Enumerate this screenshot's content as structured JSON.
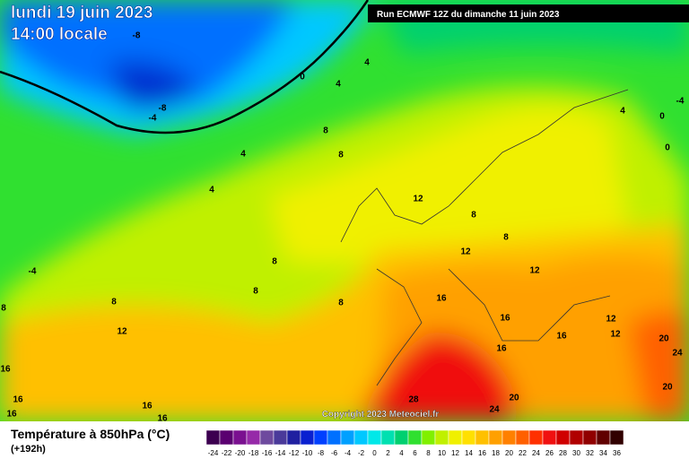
{
  "header": {
    "date": "lundi 19 juin 2023",
    "time": "14:00 locale",
    "run": "Run ECMWF 12Z du dimanche 11 juin 2023"
  },
  "copyright": "Copyright 2023 Meteociel.fr",
  "legend": {
    "title": "Température à 850hPa (°C)",
    "lead": "(+192h)",
    "values": [
      -24,
      -22,
      -20,
      -18,
      -16,
      -14,
      -12,
      -10,
      -8,
      -6,
      -4,
      -2,
      0,
      2,
      4,
      6,
      8,
      10,
      12,
      14,
      16,
      18,
      20,
      22,
      24,
      26,
      28,
      30,
      32,
      34,
      36
    ],
    "colors": [
      "#3c0050",
      "#5a0070",
      "#7a1090",
      "#962aa8",
      "#6e4a9e",
      "#4a3a9a",
      "#2020a0",
      "#0a20d0",
      "#0040ff",
      "#0070ff",
      "#00a0ff",
      "#00c8ff",
      "#00e8e8",
      "#00e0b0",
      "#00d070",
      "#30e030",
      "#80f000",
      "#c0f000",
      "#f0f000",
      "#ffe000",
      "#ffc000",
      "#ffa000",
      "#ff8000",
      "#ff6000",
      "#ff3000",
      "#f01010",
      "#d00000",
      "#b00000",
      "#900000",
      "#600000",
      "#300000"
    ]
  },
  "contour_labels": [
    -8,
    0,
    4,
    4,
    -8,
    -4,
    8,
    8,
    4,
    4,
    12,
    8,
    8,
    12,
    12,
    8,
    8,
    -4,
    8,
    8,
    8,
    12,
    16,
    16,
    12,
    12,
    16,
    16,
    16,
    16,
    16,
    16,
    16,
    20,
    24,
    20,
    28,
    20,
    24,
    4,
    -4,
    0,
    0
  ]
}
